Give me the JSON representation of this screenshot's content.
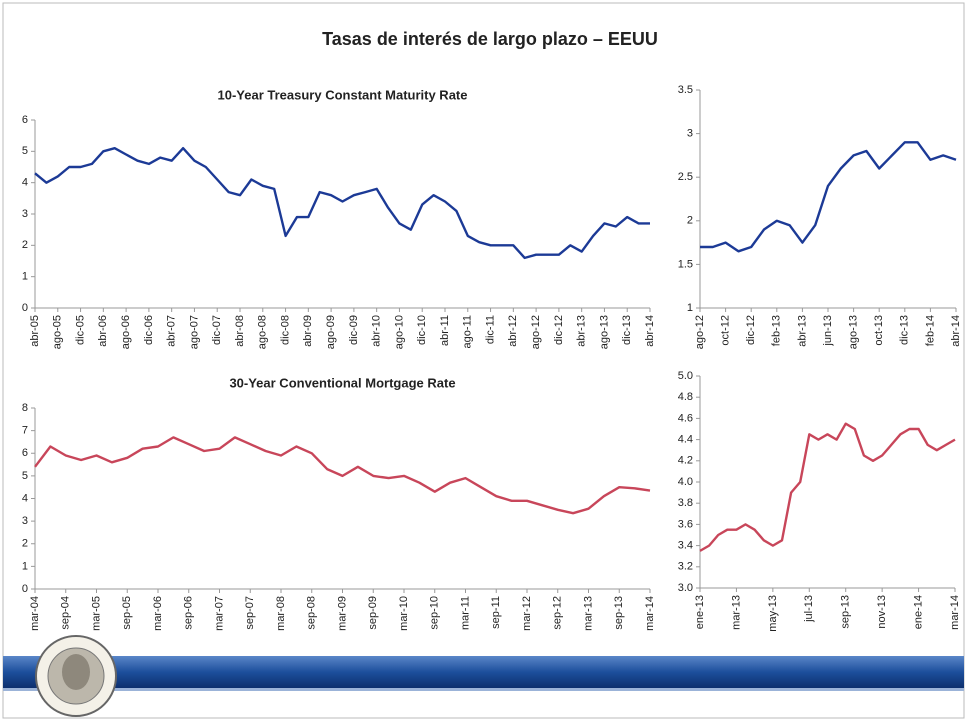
{
  "title": "Tasas de interés de largo plazo – EEUU",
  "chart_data": [
    {
      "type": "line",
      "title": "10-Year Treasury Constant Maturity Rate",
      "color": "#1c3a96",
      "categories": [
        "abr-05",
        null,
        "ago-05",
        null,
        "dic-05",
        null,
        "abr-06",
        null,
        "ago-06",
        null,
        "dic-06",
        null,
        "abr-07",
        null,
        "ago-07",
        null,
        "dic-07",
        null,
        "abr-08",
        null,
        "ago-08",
        null,
        "dic-08",
        null,
        "abr-09",
        null,
        "ago-09",
        null,
        "dic-09",
        null,
        "abr-10",
        null,
        "ago-10",
        null,
        "dic-10",
        null,
        "abr-11",
        null,
        "ago-11",
        null,
        "dic-11",
        null,
        "abr-12",
        null,
        "ago-12",
        null,
        "dic-12",
        null,
        "abr-13",
        null,
        "ago-13",
        null,
        "dic-13",
        null,
        "abr-14"
      ],
      "values": [
        4.3,
        4.0,
        4.2,
        4.5,
        4.5,
        4.6,
        5.0,
        5.1,
        4.9,
        4.7,
        4.6,
        4.8,
        4.7,
        5.1,
        4.7,
        4.5,
        4.1,
        3.7,
        3.6,
        4.1,
        3.9,
        3.8,
        2.3,
        2.9,
        2.9,
        3.7,
        3.6,
        3.4,
        3.6,
        3.7,
        3.8,
        3.2,
        2.7,
        2.5,
        3.3,
        3.6,
        3.4,
        3.1,
        2.3,
        2.1,
        2.0,
        2.0,
        2.0,
        1.6,
        1.7,
        1.7,
        1.7,
        2.0,
        1.8,
        2.3,
        2.7,
        2.6,
        2.9,
        2.7,
        2.7
      ],
      "ylim": [
        0,
        6
      ],
      "yticks": [
        0,
        1,
        2,
        3,
        4,
        5,
        6
      ]
    },
    {
      "type": "line",
      "color": "#1c3a96",
      "categories": [
        "ago-12",
        null,
        "oct-12",
        null,
        "dic-12",
        null,
        "feb-13",
        null,
        "abr-13",
        null,
        "jun-13",
        null,
        "ago-13",
        null,
        "oct-13",
        null,
        "dic-13",
        null,
        "feb-14",
        null,
        "abr-14"
      ],
      "values": [
        1.7,
        1.7,
        1.75,
        1.65,
        1.7,
        1.9,
        2.0,
        1.95,
        1.75,
        1.95,
        2.4,
        2.6,
        2.75,
        2.8,
        2.6,
        2.75,
        2.9,
        2.9,
        2.7,
        2.75,
        2.7
      ],
      "ylim": [
        1,
        3.5
      ],
      "yticks": [
        1,
        1.5,
        2,
        2.5,
        3,
        3.5
      ]
    },
    {
      "type": "line",
      "title": "30-Year Conventional Mortgage Rate",
      "color": "#c8465a",
      "categories": [
        "mar-04",
        null,
        "sep-04",
        null,
        "mar-05",
        null,
        "sep-05",
        null,
        "mar-06",
        null,
        "sep-06",
        null,
        "mar-07",
        null,
        "sep-07",
        null,
        "mar-08",
        null,
        "sep-08",
        null,
        "mar-09",
        null,
        "sep-09",
        null,
        "mar-10",
        null,
        "sep-10",
        null,
        "mar-11",
        null,
        "sep-11",
        null,
        "mar-12",
        null,
        "sep-12",
        null,
        "mar-13",
        null,
        "sep-13",
        null,
        "mar-14"
      ],
      "values": [
        5.4,
        6.3,
        5.9,
        5.7,
        5.9,
        5.6,
        5.8,
        6.2,
        6.3,
        6.7,
        6.4,
        6.1,
        6.2,
        6.7,
        6.4,
        6.1,
        5.9,
        6.3,
        6.0,
        5.3,
        5.0,
        5.4,
        5.0,
        4.9,
        5.0,
        4.7,
        4.3,
        4.7,
        4.9,
        4.5,
        4.1,
        3.9,
        3.9,
        3.7,
        3.5,
        3.35,
        3.55,
        4.1,
        4.5,
        4.45,
        4.35
      ],
      "ylim": [
        0,
        8
      ],
      "yticks": [
        0,
        1,
        2,
        3,
        4,
        5,
        6,
        7,
        8
      ]
    },
    {
      "type": "line",
      "color": "#c8465a",
      "categories": [
        "ene-13",
        null,
        null,
        null,
        "mar-13",
        null,
        null,
        null,
        "may-13",
        null,
        null,
        null,
        "jul-13",
        null,
        null,
        null,
        "sep-13",
        null,
        null,
        null,
        "nov-13",
        null,
        null,
        null,
        "ene-14",
        null,
        null,
        null,
        "mar-14"
      ],
      "values": [
        3.35,
        3.4,
        3.5,
        3.55,
        3.55,
        3.6,
        3.55,
        3.45,
        3.4,
        3.45,
        3.9,
        4.0,
        4.45,
        4.4,
        4.45,
        4.4,
        4.55,
        4.5,
        4.25,
        4.2,
        4.25,
        4.35,
        4.45,
        4.5,
        4.5,
        4.35,
        4.3,
        4.35,
        4.4
      ],
      "ylim": [
        3.0,
        5.0
      ],
      "yticks": [
        {
          "value": 3.0,
          "label": "3.0"
        },
        3.2,
        3.4,
        3.6,
        3.8,
        {
          "value": 4.0,
          "label": "4.0"
        },
        4.2,
        4.4,
        4.6,
        4.8,
        {
          "value": 5.0,
          "label": "5.0"
        }
      ]
    }
  ]
}
